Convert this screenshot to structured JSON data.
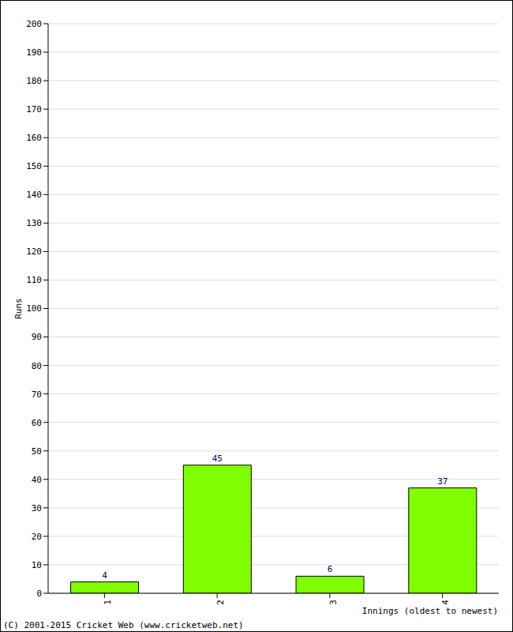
{
  "chart_data": {
    "type": "bar",
    "categories": [
      "1",
      "2",
      "3",
      "4"
    ],
    "values": [
      4,
      45,
      6,
      37
    ],
    "color": "#7fff00",
    "ylim": [
      0,
      200
    ],
    "yticks": [
      0,
      10,
      20,
      30,
      40,
      50,
      60,
      70,
      80,
      90,
      100,
      110,
      120,
      130,
      140,
      150,
      160,
      170,
      180,
      190,
      200
    ],
    "y_label": "Runs",
    "x_label": "Innings (oldest to newest)",
    "annotations": [
      "(C) 2001-2015 Cricket Web (www.cricketweb.net)"
    ],
    "grid": true,
    "data_labels": true
  }
}
